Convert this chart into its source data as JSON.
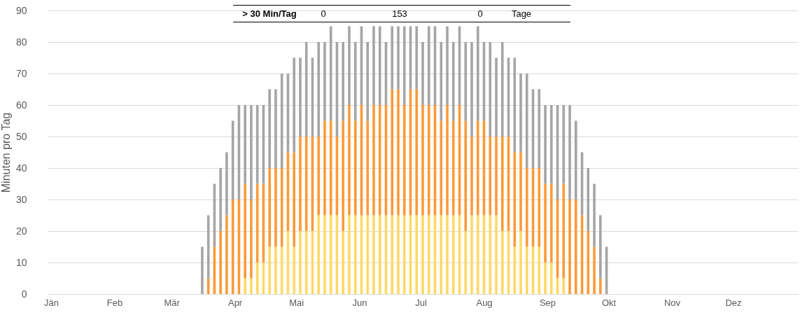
{
  "chart_data": {
    "type": "bar",
    "stacked": true,
    "ylabel": "Minuten pro Tag",
    "x": [
      "--03-16",
      "--03-19",
      "--03-22",
      "--03-25",
      "--03-28",
      "--03-31",
      "--04-03",
      "--04-06",
      "--04-09",
      "--04-12",
      "--04-15",
      "--04-18",
      "--04-21",
      "--04-24",
      "--04-27",
      "--04-30",
      "--05-03",
      "--05-06",
      "--05-09",
      "--05-12",
      "--05-15",
      "--05-18",
      "--05-21",
      "--05-24",
      "--05-27",
      "--05-30",
      "--06-02",
      "--06-05",
      "--06-08",
      "--06-11",
      "--06-14",
      "--06-17",
      "--06-20",
      "--06-23",
      "--06-26",
      "--06-29",
      "--07-02",
      "--07-05",
      "--07-08",
      "--07-11",
      "--07-14",
      "--07-17",
      "--07-20",
      "--07-23",
      "--07-26",
      "--07-29",
      "--08-01",
      "--08-04",
      "--08-07",
      "--08-10",
      "--08-13",
      "--08-16",
      "--08-19",
      "--08-22",
      "--08-25",
      "--08-28",
      "--08-31",
      "--09-03",
      "--09-06",
      "--09-09",
      "--09-12",
      "--09-15",
      "--09-18",
      "--09-21",
      "--09-24",
      "--09-27",
      "--09-30"
    ],
    "series": [
      {
        "color": "#ffd966",
        "values": [
          0,
          0,
          0,
          0,
          0,
          0,
          0,
          5,
          5,
          10,
          10,
          15,
          15,
          15,
          20,
          15,
          20,
          20,
          20,
          25,
          25,
          25,
          25,
          20,
          25,
          25,
          25,
          25,
          25,
          25,
          25,
          25,
          25,
          25,
          25,
          25,
          25,
          25,
          25,
          25,
          25,
          25,
          25,
          20,
          25,
          25,
          25,
          25,
          25,
          20,
          20,
          15,
          20,
          15,
          15,
          15,
          10,
          10,
          5,
          5,
          0,
          0,
          0,
          0,
          0,
          0,
          0
        ]
      },
      {
        "color": "#fd9a38",
        "values": [
          0,
          5,
          15,
          20,
          25,
          30,
          30,
          30,
          25,
          25,
          25,
          25,
          25,
          25,
          25,
          30,
          30,
          30,
          30,
          25,
          30,
          30,
          25,
          35,
          35,
          30,
          35,
          30,
          35,
          35,
          35,
          40,
          40,
          35,
          40,
          40,
          35,
          35,
          35,
          30,
          35,
          30,
          35,
          35,
          25,
          30,
          30,
          25,
          25,
          30,
          30,
          30,
          25,
          25,
          25,
          25,
          25,
          25,
          25,
          30,
          30,
          30,
          25,
          20,
          15,
          5,
          0
        ]
      },
      {
        "color": "#a5a5a5",
        "values": [
          15,
          20,
          20,
          20,
          20,
          25,
          30,
          25,
          30,
          25,
          25,
          25,
          25,
          30,
          25,
          30,
          25,
          30,
          25,
          30,
          25,
          30,
          30,
          25,
          25,
          25,
          25,
          25,
          25,
          25,
          20,
          20,
          20,
          25,
          20,
          20,
          20,
          25,
          25,
          25,
          25,
          25,
          25,
          25,
          30,
          30,
          25,
          30,
          25,
          30,
          25,
          30,
          25,
          30,
          25,
          25,
          25,
          25,
          30,
          25,
          30,
          25,
          20,
          20,
          20,
          20,
          15
        ]
      }
    ],
    "xlim": [
      "--01-01",
      "--12-31"
    ],
    "xticks": [
      {
        "value": "--01-01",
        "label": "Jän"
      },
      {
        "value": "--02-01",
        "label": "Feb"
      },
      {
        "value": "--03-01",
        "label": "Mär"
      },
      {
        "value": "--04-01",
        "label": "Apr"
      },
      {
        "value": "--05-01",
        "label": "Mai"
      },
      {
        "value": "--06-01",
        "label": "Jun"
      },
      {
        "value": "--07-01",
        "label": "Jul"
      },
      {
        "value": "--08-01",
        "label": "Aug"
      },
      {
        "value": "--09-01",
        "label": "Sep"
      },
      {
        "value": "--10-01",
        "label": "Okt"
      },
      {
        "value": "--11-01",
        "label": "Nov"
      },
      {
        "value": "--12-01",
        "label": "Dez"
      }
    ],
    "ylim": [
      0,
      90
    ],
    "yticks": [
      0,
      10,
      20,
      30,
      40,
      50,
      60,
      70,
      80,
      90
    ],
    "grid": "y",
    "annotations": [
      "> 30 Min/Tag",
      "0",
      "153",
      "0",
      "Tage"
    ]
  }
}
